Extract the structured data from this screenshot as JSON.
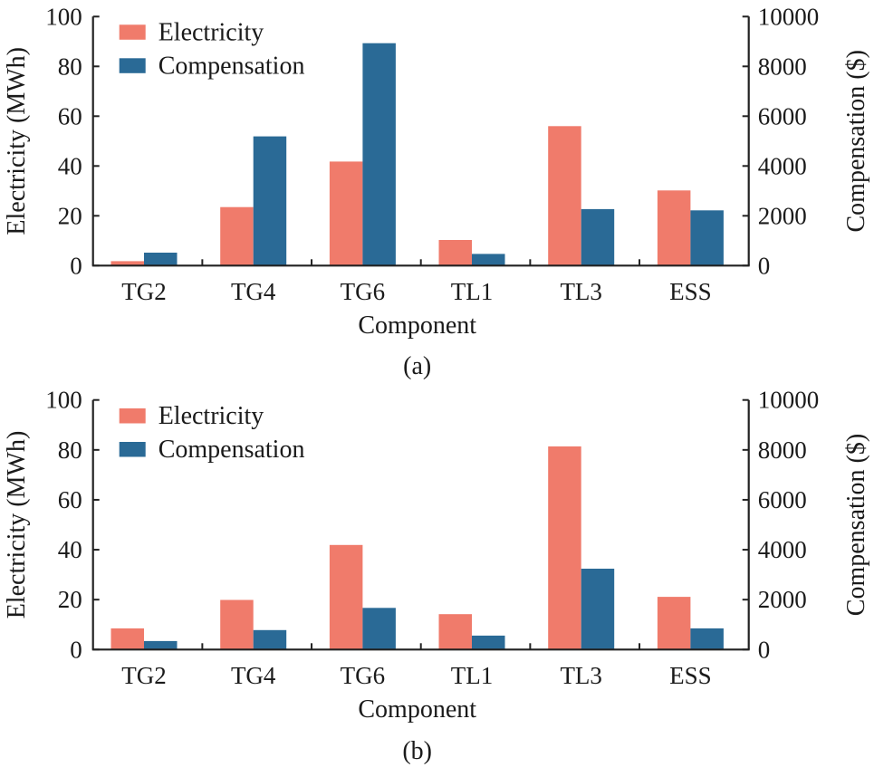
{
  "chart_data": [
    {
      "type": "bar",
      "panel_label": "(a)",
      "categories": [
        "TG2",
        "TG4",
        "TG6",
        "TL1",
        "TL3",
        "ESS"
      ],
      "xlabel": "Component",
      "ylabel": "Electricity (MWh)",
      "y2label": "Compensation ($)",
      "ylim": [
        0,
        100
      ],
      "y2lim": [
        0,
        10000
      ],
      "yticks": [
        0,
        20,
        40,
        60,
        80,
        100
      ],
      "y2ticks": [
        0,
        2000,
        4000,
        6000,
        8000,
        10000
      ],
      "grid": false,
      "legend_position": "top-left",
      "series": [
        {
          "name": "Electricity",
          "axis": "left",
          "color": "#F07B6B",
          "values": [
            1.8,
            23.5,
            41.8,
            10.3,
            56.0,
            30.2
          ]
        },
        {
          "name": "Compensation",
          "axis": "right",
          "color": "#2A6A96",
          "values": [
            520,
            5190,
            8930,
            470,
            2270,
            2220
          ]
        }
      ]
    },
    {
      "type": "bar",
      "panel_label": "(b)",
      "categories": [
        "TG2",
        "TG4",
        "TG6",
        "TL1",
        "TL3",
        "ESS"
      ],
      "xlabel": "Component",
      "ylabel": "Electricity (MWh)",
      "y2label": "Compensation ($)",
      "ylim": [
        0,
        100
      ],
      "y2lim": [
        0,
        10000
      ],
      "yticks": [
        0,
        20,
        40,
        60,
        80,
        100
      ],
      "y2ticks": [
        0,
        2000,
        4000,
        6000,
        8000,
        10000
      ],
      "grid": false,
      "legend_position": "top-left",
      "series": [
        {
          "name": "Electricity",
          "axis": "left",
          "color": "#F07B6B",
          "values": [
            8.5,
            19.9,
            41.9,
            14.2,
            81.4,
            21.1
          ]
        },
        {
          "name": "Compensation",
          "axis": "right",
          "color": "#2A6A96",
          "values": [
            340,
            780,
            1670,
            560,
            3240,
            850
          ]
        }
      ]
    }
  ]
}
